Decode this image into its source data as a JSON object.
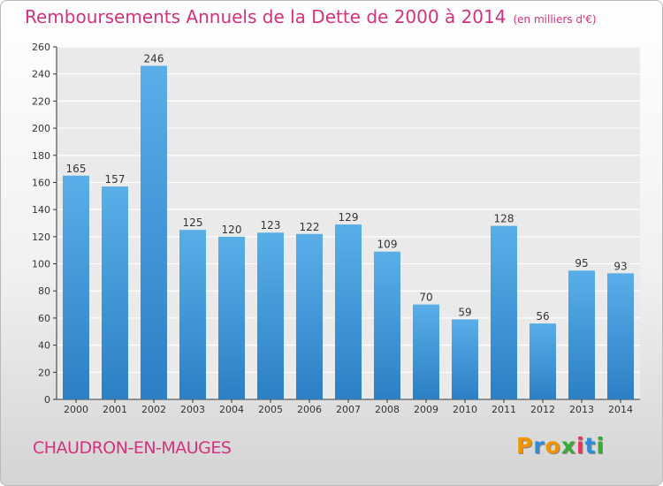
{
  "chart_data": {
    "type": "bar",
    "title": "Remboursements Annuels de la Dette de 2000 à 2014",
    "subtitle": "(en milliers d'€)",
    "categories": [
      "2000",
      "2001",
      "2002",
      "2003",
      "2004",
      "2005",
      "2006",
      "2007",
      "2008",
      "2009",
      "2010",
      "2011",
      "2012",
      "2013",
      "2014"
    ],
    "values": [
      165,
      157,
      246,
      125,
      120,
      123,
      122,
      129,
      109,
      70,
      59,
      128,
      56,
      95,
      93
    ],
    "ylim": [
      0,
      260
    ],
    "yticks": [
      0,
      20,
      40,
      60,
      80,
      100,
      120,
      140,
      160,
      180,
      200,
      220,
      240,
      260
    ],
    "xlabel": "",
    "ylabel": "",
    "grid": true,
    "colors": {
      "bar_light": "#5aaee8",
      "bar_dark": "#2d7fc4",
      "title": "#d4327e"
    }
  },
  "footer": {
    "city": "CHAUDRON-EN-MAUGES"
  },
  "logo": {
    "letters": [
      "P",
      "r",
      "o",
      "x",
      "i",
      "t",
      "i"
    ],
    "colors": [
      "#f29400",
      "#2e8bd6",
      "#f29400",
      "#3aa935",
      "#e8335b",
      "#2e8bd6",
      "#3aa935"
    ]
  }
}
